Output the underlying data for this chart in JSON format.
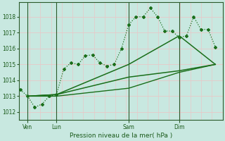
{
  "xlabel": "Pression niveau de la mer( hPa )",
  "background_color": "#c8e8e0",
  "plot_bg_color": "#c8e8e0",
  "grid_color_h": "#e8c8c8",
  "grid_color_v": "#e8c8c8",
  "line_color": "#1a6e1a",
  "vline_color": "#2a5a2a",
  "ylim": [
    1011.5,
    1018.9
  ],
  "yticks": [
    1012,
    1013,
    1014,
    1015,
    1016,
    1017,
    1018
  ],
  "xtick_labels": [
    "Ven",
    "Lun",
    "Sam",
    "Dim"
  ],
  "xtick_positions": [
    1,
    5,
    15,
    22
  ],
  "vline_positions": [
    1,
    5,
    15,
    22
  ],
  "xlim": [
    -0.2,
    28
  ],
  "series1_x": [
    0,
    1,
    2,
    3,
    4,
    5,
    6,
    7,
    8,
    9,
    10,
    11,
    12,
    13,
    14,
    15,
    16,
    17,
    18,
    19,
    20,
    21,
    22,
    23,
    24,
    25,
    26,
    27
  ],
  "series1_y": [
    1013.4,
    1013.0,
    1012.3,
    1012.5,
    1013.0,
    1013.1,
    1014.7,
    1015.1,
    1015.0,
    1015.55,
    1015.6,
    1015.1,
    1014.9,
    1015.0,
    1016.0,
    1017.5,
    1018.0,
    1018.0,
    1018.55,
    1018.0,
    1017.1,
    1017.1,
    1016.7,
    1016.8,
    1018.0,
    1017.2,
    1017.2,
    1016.1
  ],
  "series2_x": [
    1,
    5,
    15,
    22,
    27
  ],
  "series2_y": [
    1013.0,
    1013.1,
    1015.0,
    1016.8,
    1015.0
  ],
  "series3_x": [
    1,
    5,
    15,
    22,
    27
  ],
  "series3_y": [
    1013.0,
    1013.1,
    1014.2,
    1014.6,
    1015.0
  ],
  "series4_x": [
    1,
    5,
    15,
    22,
    27
  ],
  "series4_y": [
    1013.0,
    1013.0,
    1013.5,
    1014.5,
    1015.0
  ],
  "figsize": [
    3.2,
    2.0
  ],
  "dpi": 100
}
